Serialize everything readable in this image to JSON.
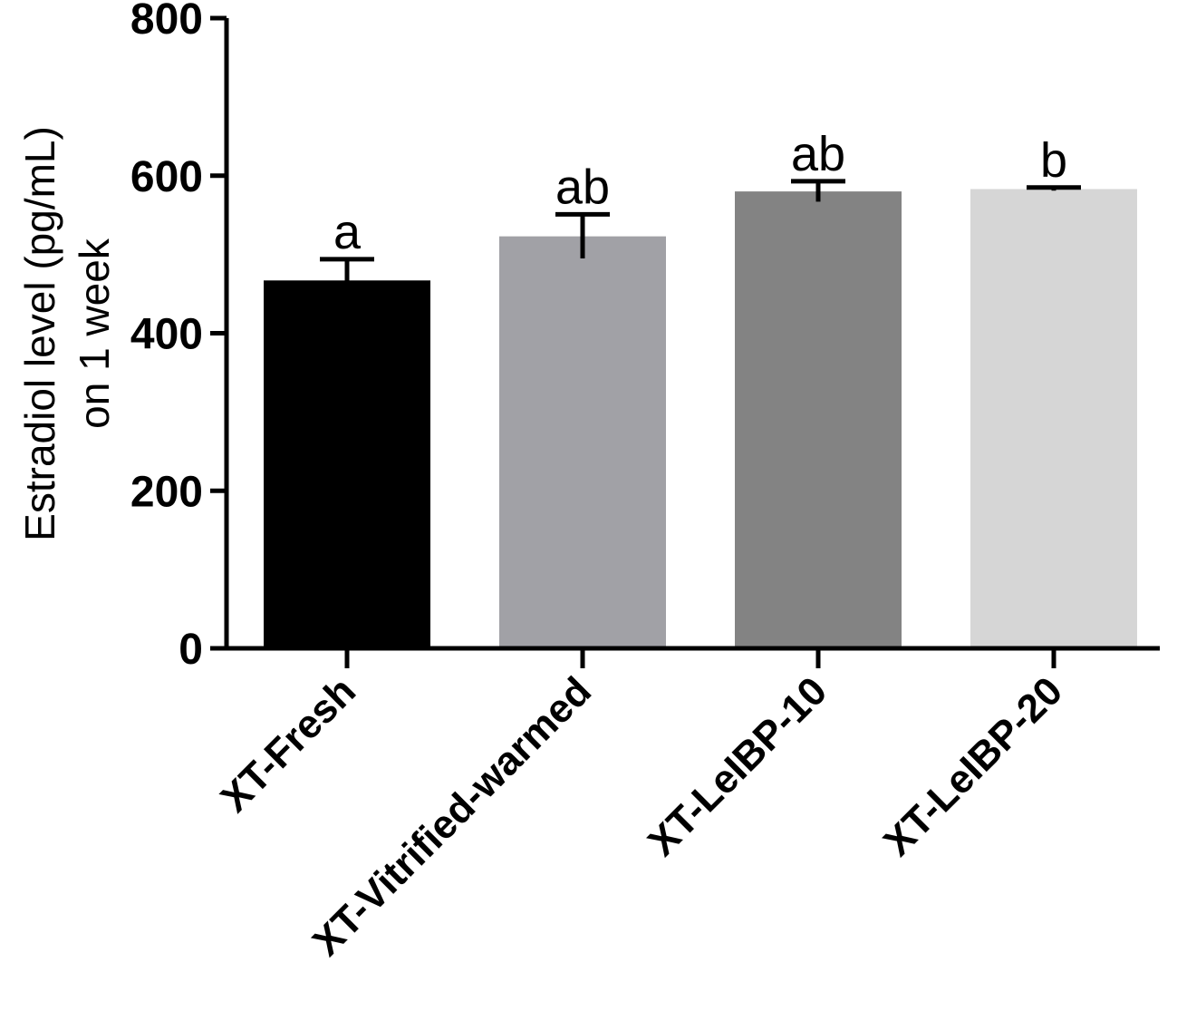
{
  "chart_data": {
    "type": "bar",
    "title": "",
    "xlabel": "",
    "ylabel_lines": [
      "Estradiol level (pg/mL)",
      "on 1 week"
    ],
    "ylim": [
      0,
      800
    ],
    "yticks": [
      0,
      200,
      400,
      600,
      800
    ],
    "categories": [
      "XT-Fresh",
      "XT-Vitrified-warmed",
      "XT-LeIBP-10",
      "XT-LeIBP-20"
    ],
    "values": [
      467,
      523,
      580,
      583
    ],
    "errors": [
      27,
      28,
      13,
      2
    ],
    "significance": [
      "a",
      "ab",
      "ab",
      "b"
    ],
    "colors": [
      "#000000",
      "#a1a1a6",
      "#838383",
      "#d6d6d6"
    ],
    "grid": false,
    "legend": "none"
  }
}
